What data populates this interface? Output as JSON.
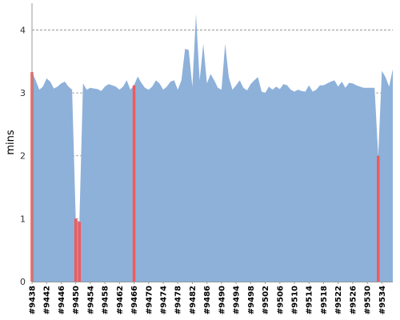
{
  "chart_data": {
    "type": "area",
    "ylabel": "mins",
    "ylim": [
      0,
      4.4
    ],
    "yticks": [
      0,
      1,
      2,
      3,
      4
    ],
    "grid": true,
    "x_start": 9438,
    "x_end": 9536,
    "x_tick_labels": [
      "#9438",
      "#9442",
      "#9446",
      "#9450",
      "#9454",
      "#9458",
      "#9462",
      "#9466",
      "#9470",
      "#9474",
      "#9478",
      "#9482",
      "#9486",
      "#9490",
      "#9494",
      "#9498",
      "#9502",
      "#9506",
      "#9510",
      "#9514",
      "#9518",
      "#9522",
      "#9526",
      "#9530",
      "#9534"
    ],
    "series": [
      {
        "color": "#8eb1da",
        "values": [
          3.33,
          3.2,
          3.05,
          3.1,
          3.23,
          3.18,
          3.07,
          3.1,
          3.15,
          3.18,
          3.1,
          3.05,
          1.0,
          0.95,
          3.15,
          3.05,
          3.08,
          3.07,
          3.06,
          3.03,
          3.1,
          3.14,
          3.12,
          3.1,
          3.05,
          3.1,
          3.2,
          3.05,
          3.12,
          3.26,
          3.16,
          3.08,
          3.05,
          3.1,
          3.2,
          3.15,
          3.05,
          3.1,
          3.18,
          3.2,
          3.05,
          3.2,
          3.7,
          3.68,
          3.1,
          4.25,
          3.2,
          3.78,
          3.15,
          3.3,
          3.2,
          3.08,
          3.05,
          3.78,
          3.25,
          3.05,
          3.12,
          3.2,
          3.08,
          3.04,
          3.14,
          3.2,
          3.25,
          3.02,
          3.0,
          3.1,
          3.05,
          3.1,
          3.06,
          3.14,
          3.12,
          3.05,
          3.02,
          3.05,
          3.03,
          3.02,
          3.12,
          3.02,
          3.05,
          3.12,
          3.12,
          3.15,
          3.18,
          3.2,
          3.1,
          3.18,
          3.08,
          3.16,
          3.15,
          3.12,
          3.1,
          3.08,
          3.08,
          3.08,
          3.08,
          2.0,
          3.35,
          3.25,
          3.1,
          3.38
        ]
      }
    ],
    "highlight": {
      "color": "#f15a5a",
      "builds": [
        9438,
        9450,
        9451,
        9466,
        9533
      ]
    }
  }
}
